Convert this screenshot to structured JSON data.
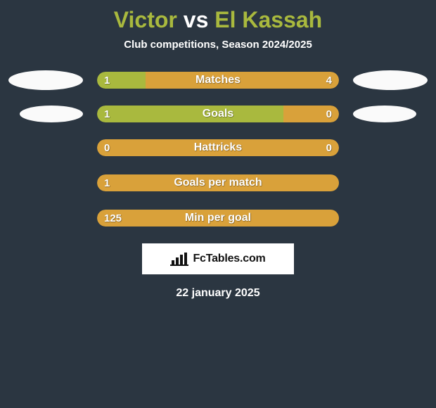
{
  "title": {
    "player1": "Victor",
    "vs": "vs",
    "player2": "El Kassah"
  },
  "subtitle": "Club competitions, Season 2024/2025",
  "colors": {
    "player1": "#a9b93e",
    "player2": "#d9a13a",
    "background": "#2b3641",
    "panel_bg": "#ffffff",
    "text": "#ffffff",
    "title_fontsize": 32,
    "label_fontsize": 16
  },
  "stats": [
    {
      "key": "matches",
      "label": "Matches",
      "left_value": "1",
      "right_value": "4",
      "left_pct": 20,
      "right_pct": 80,
      "left_color": "#a9b93e",
      "right_color": "#d9a13a",
      "show_ellipse": true,
      "ellipse_small": false
    },
    {
      "key": "goals",
      "label": "Goals",
      "left_value": "1",
      "right_value": "0",
      "left_pct": 77,
      "right_pct": 23,
      "left_color": "#a9b93e",
      "right_color": "#d9a13a",
      "show_ellipse": true,
      "ellipse_small": true
    },
    {
      "key": "hattricks",
      "label": "Hattricks",
      "left_value": "0",
      "right_value": "0",
      "left_pct": 50,
      "right_pct": 50,
      "left_color": "#d9a13a",
      "right_color": "#d9a13a",
      "show_ellipse": false
    },
    {
      "key": "gpm",
      "label": "Goals per match",
      "left_value": "1",
      "right_value": "",
      "left_pct": 100,
      "right_pct": 0,
      "left_color": "#d9a13a",
      "right_color": "#d9a13a",
      "show_ellipse": false
    },
    {
      "key": "mpg",
      "label": "Min per goal",
      "left_value": "125",
      "right_value": "",
      "left_pct": 100,
      "right_pct": 0,
      "left_color": "#d9a13a",
      "right_color": "#d9a13a",
      "show_ellipse": false
    }
  ],
  "attribution": {
    "text": "FcTables.com"
  },
  "date": "22 january 2025"
}
